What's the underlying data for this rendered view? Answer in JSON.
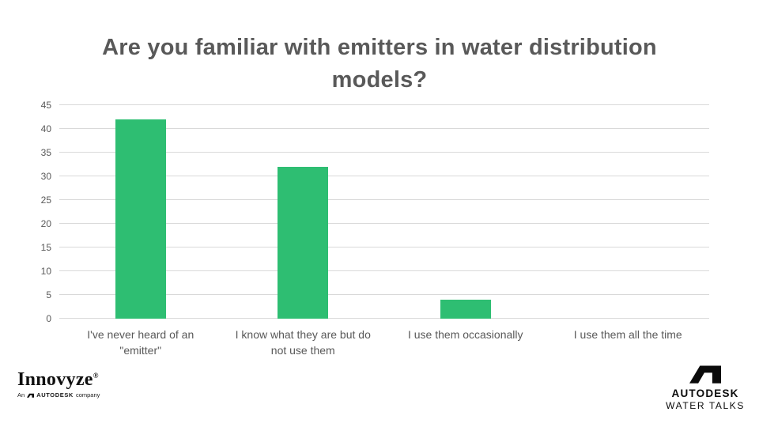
{
  "title": "Are you familiar with emitters in water distribution models?",
  "chart_data": {
    "type": "bar",
    "title": "Are you familiar with emitters in water distribution models?",
    "categories": [
      "I've never heard of an \"emitter\"",
      "I know what they are but do not use them",
      "I use them occasionally",
      "I use them all the time"
    ],
    "values": [
      42,
      32,
      4,
      0
    ],
    "xlabel": "",
    "ylabel": "",
    "ylim": [
      0,
      45
    ],
    "ytick_step": 5,
    "yticks": [
      0,
      5,
      10,
      15,
      20,
      25,
      30,
      35,
      40,
      45
    ],
    "grid": true,
    "legend": "none",
    "bar_color": "#2ebe72",
    "gridline_color": "#d9d9d9",
    "text_color": "#595959"
  },
  "footer": {
    "innovyze": {
      "brand": "Innovyze",
      "registered": "®",
      "tagline_prefix": "An",
      "tagline_brand": "AUTODESK",
      "tagline_suffix": "company"
    },
    "autodesk": {
      "line1": "AUTODESK",
      "line2": "WATER TALKS"
    }
  },
  "colors": {
    "bar": "#2ebe72",
    "grid": "#d9d9d9",
    "title_text": "#595959",
    "logo_text": "#0b0b0b",
    "background": "#ffffff"
  }
}
